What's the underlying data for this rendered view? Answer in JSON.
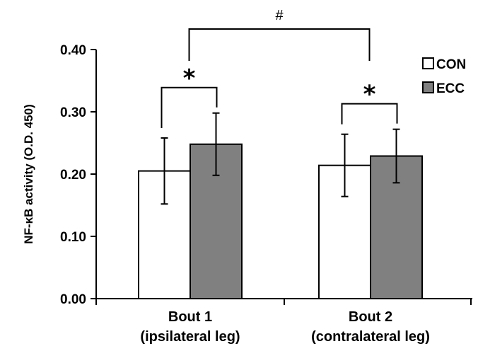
{
  "chart_data": {
    "type": "bar",
    "ylabel": "NF-κB activity (O.D. 450)",
    "ylim": [
      0,
      0.4
    ],
    "yticks": [
      "0.00",
      "0.10",
      "0.20",
      "0.30",
      "0.40"
    ],
    "categories": [
      [
        "Bout 1",
        "(ipsilateral leg)"
      ],
      [
        "Bout 2",
        "(contralateral leg)"
      ]
    ],
    "series": [
      {
        "name": "CON",
        "color": "#ffffff",
        "values": [
          0.205,
          0.214
        ],
        "errors": [
          0.053,
          0.05
        ]
      },
      {
        "name": "ECC",
        "color": "#808080",
        "values": [
          0.248,
          0.229
        ],
        "errors": [
          0.05,
          0.043
        ]
      }
    ],
    "legend_position": "top-right",
    "annotations": {
      "within_bout": "*",
      "between_bouts": "#"
    }
  }
}
